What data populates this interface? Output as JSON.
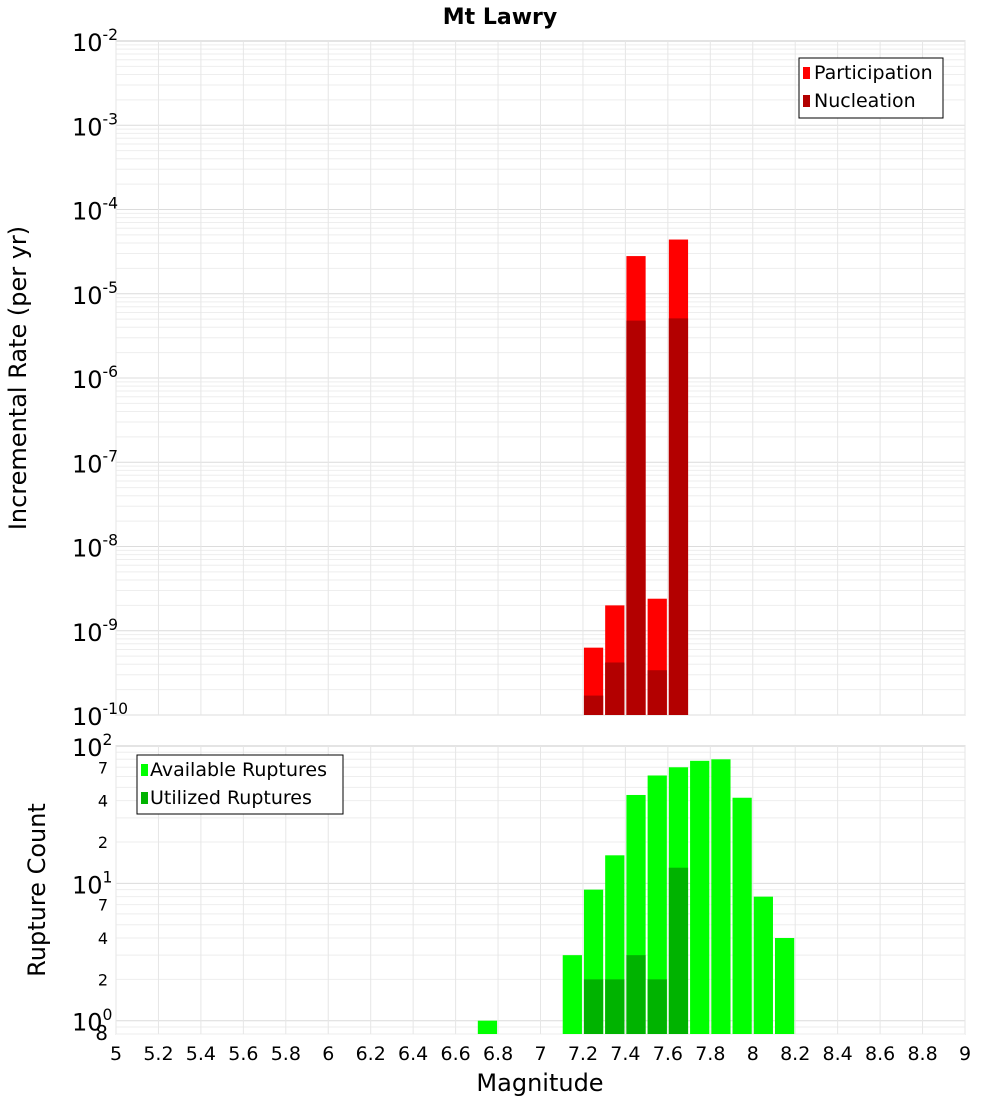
{
  "chart_data": [
    {
      "type": "bar",
      "title": "Mt Lawry",
      "ylabel": "Incremental Rate (per yr)",
      "yscale": "log",
      "ylim": [
        1e-10,
        0.01
      ],
      "y_ticks": [
        {
          "base": "10",
          "exp": "-2"
        },
        {
          "base": "10",
          "exp": "-3"
        },
        {
          "base": "10",
          "exp": "-4"
        },
        {
          "base": "10",
          "exp": "-5"
        },
        {
          "base": "10",
          "exp": "-6"
        },
        {
          "base": "10",
          "exp": "-7"
        },
        {
          "base": "10",
          "exp": "-8"
        },
        {
          "base": "10",
          "exp": "-9"
        },
        {
          "base": "10",
          "exp": "-10"
        }
      ],
      "grid": true,
      "legend_position": "top-right",
      "series": [
        {
          "name": "Participation",
          "color": "#ff0000",
          "x": [
            7.25,
            7.35,
            7.45,
            7.55,
            7.65
          ],
          "values": [
            6.3e-10,
            2e-09,
            2.8e-05,
            2.4e-09,
            4.4e-05
          ]
        },
        {
          "name": "Nucleation",
          "color": "#b30000",
          "x": [
            7.25,
            7.35,
            7.45,
            7.55,
            7.65
          ],
          "values": [
            1.7e-10,
            4.2e-10,
            4.8e-06,
            3.4e-10,
            5.1e-06
          ]
        }
      ]
    },
    {
      "type": "bar",
      "xlabel": "Magnitude",
      "ylabel": "Rupture Count",
      "yscale": "log",
      "ylim": [
        0.8,
        100
      ],
      "xlim": [
        5,
        9
      ],
      "x_ticks": [
        "5",
        "5.2",
        "5.4",
        "5.6",
        "5.8",
        "6",
        "6.2",
        "6.4",
        "6.6",
        "6.8",
        "7",
        "7.2",
        "7.4",
        "7.6",
        "7.8",
        "8",
        "8.2",
        "8.4",
        "8.6",
        "8.8",
        "9"
      ],
      "y_major_ticks": [
        {
          "value": 1,
          "base": "10",
          "exp": "0"
        },
        {
          "value": 10,
          "base": "10",
          "exp": "1"
        },
        {
          "value": 100,
          "base": "10",
          "exp": "2"
        }
      ],
      "y_minor_ticks": [
        {
          "value": 0.8,
          "label": "8"
        },
        {
          "value": 2,
          "label": "2"
        },
        {
          "value": 4,
          "label": "4"
        },
        {
          "value": 7,
          "label": "7"
        },
        {
          "value": 20,
          "label": "2"
        },
        {
          "value": 40,
          "label": "4"
        },
        {
          "value": 70,
          "label": "7"
        }
      ],
      "grid": true,
      "legend_position": "top-left",
      "series": [
        {
          "name": "Available Ruptures",
          "color": "#00ff00",
          "x": [
            6.75,
            7.15,
            7.25,
            7.35,
            7.45,
            7.55,
            7.65,
            7.75,
            7.85,
            7.95,
            8.05,
            8.15
          ],
          "values": [
            1,
            3,
            9,
            16,
            44,
            61,
            70,
            78,
            80,
            42,
            8,
            4
          ]
        },
        {
          "name": "Utilized Ruptures",
          "color": "#00b300",
          "x": [
            7.25,
            7.35,
            7.45,
            7.55,
            7.65
          ],
          "values": [
            2,
            2,
            3,
            2,
            13
          ]
        }
      ]
    }
  ]
}
